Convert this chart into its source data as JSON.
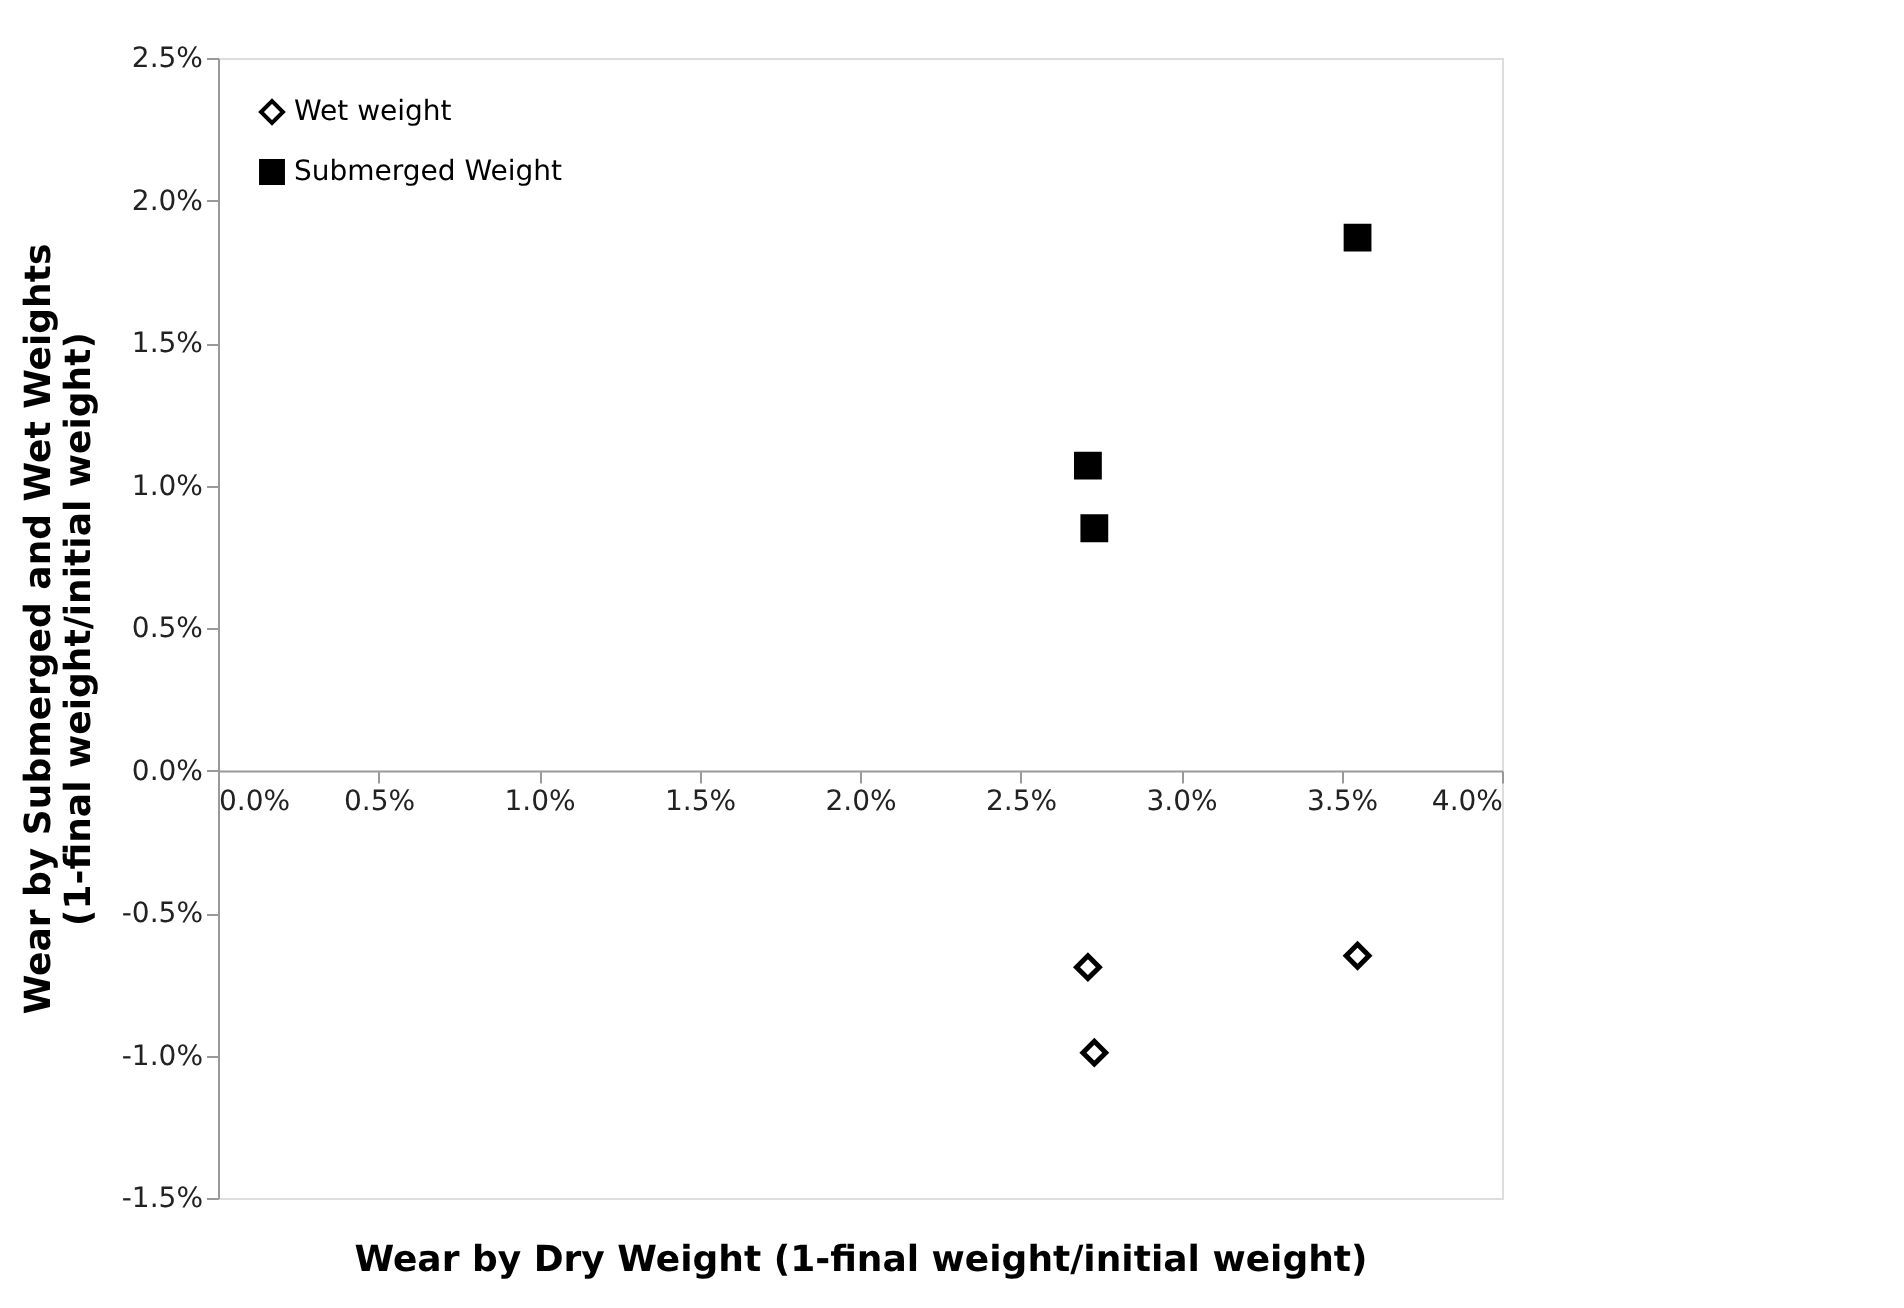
{
  "chart_data": {
    "type": "scatter",
    "xlabel": "Wear by Dry Weight (1-final weight/initial weight)",
    "ylabel": "Wear by Submerged and Wet Weights\n(1-final weight/initial weight)",
    "x": [
      2.71,
      2.73,
      3.55
    ],
    "series": [
      {
        "name": "Wet weight",
        "color": "#000000",
        "marker": "diamond",
        "values": [
          -0.69,
          -0.99,
          -0.65
        ]
      },
      {
        "name": "Submerged Weight",
        "color": "#000000",
        "marker": "square",
        "values": [
          1.07,
          0.85,
          1.87
        ]
      }
    ],
    "xlim": [
      0,
      4
    ],
    "ylim": [
      -1.5,
      2.5
    ],
    "xticks": [
      {
        "value": 0,
        "label": "0.0%"
      },
      {
        "value": 0.5,
        "label": "0.5%"
      },
      {
        "value": 1,
        "label": "1.0%"
      },
      {
        "value": 1.5,
        "label": "1.5%"
      },
      {
        "value": 2,
        "label": "2.0%"
      },
      {
        "value": 2.5,
        "label": "2.5%"
      },
      {
        "value": 3,
        "label": "3.0%"
      },
      {
        "value": 3.5,
        "label": "3.5%"
      },
      {
        "value": 4,
        "label": "4.0%"
      }
    ],
    "yticks": [
      {
        "value": -1.5,
        "label": "-1.5%"
      },
      {
        "value": -1,
        "label": "-1.0%"
      },
      {
        "value": -0.5,
        "label": "-0.5%"
      },
      {
        "value": 0,
        "label": "0.0%"
      },
      {
        "value": 0.5,
        "label": "0.5%"
      },
      {
        "value": 1,
        "label": "1.0%"
      },
      {
        "value": 1.5,
        "label": "1.5%"
      },
      {
        "value": 2,
        "label": "2.0%"
      },
      {
        "value": 2.5,
        "label": "2.5%"
      }
    ],
    "grid": false,
    "legend": "top left"
  }
}
